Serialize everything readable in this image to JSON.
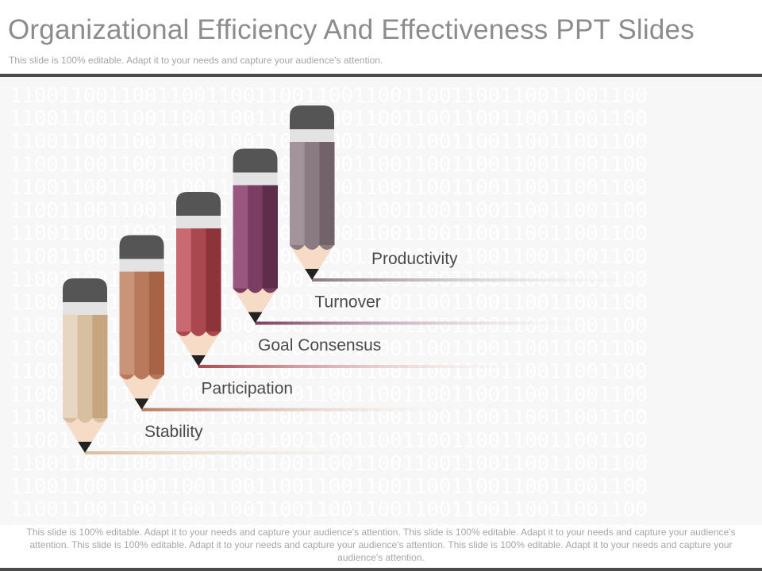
{
  "header": {
    "title": "Organizational Efficiency And Effectiveness PPT Slides",
    "subtitle": "This slide is 100% editable. Adapt it to your needs and capture your audience's attention."
  },
  "background": {
    "pattern_text": "1100110011001100110011001100110011001100110011001100"
  },
  "pencils": [
    {
      "label": "Stability",
      "colors": [
        "#e6d6c2",
        "#d8bf9f",
        "#c6a67f"
      ],
      "tip": "#222222",
      "eraser": "#555555",
      "band": "#e3e3e3"
    },
    {
      "label": "Participation",
      "colors": [
        "#c99478",
        "#b8795c",
        "#a76346"
      ],
      "tip": "#222222",
      "eraser": "#555555",
      "band": "#e3e3e3"
    },
    {
      "label": "Goal Consensus",
      "colors": [
        "#c96a72",
        "#a9484f",
        "#8d343b"
      ],
      "tip": "#222222",
      "eraser": "#555555",
      "band": "#e3e3e3"
    },
    {
      "label": "Turnover",
      "colors": [
        "#99577f",
        "#7b3d62",
        "#5e2d49"
      ],
      "tip": "#222222",
      "eraser": "#555555",
      "band": "#e3e3e3"
    },
    {
      "label": "Productivity",
      "colors": [
        "#a3949b",
        "#8a7a82",
        "#72636b"
      ],
      "tip": "#222222",
      "eraser": "#555555",
      "band": "#e3e3e3"
    }
  ],
  "footer": {
    "text": "This slide is 100% editable. Adapt it to your needs and capture your audience's attention. This slide is 100% editable. Adapt it to your needs and capture your audience's attention. This slide is 100% editable. Adapt it to your needs and capture your audience's attention. This slide is 100% editable. Adapt it to your needs and capture your audience's attention."
  }
}
